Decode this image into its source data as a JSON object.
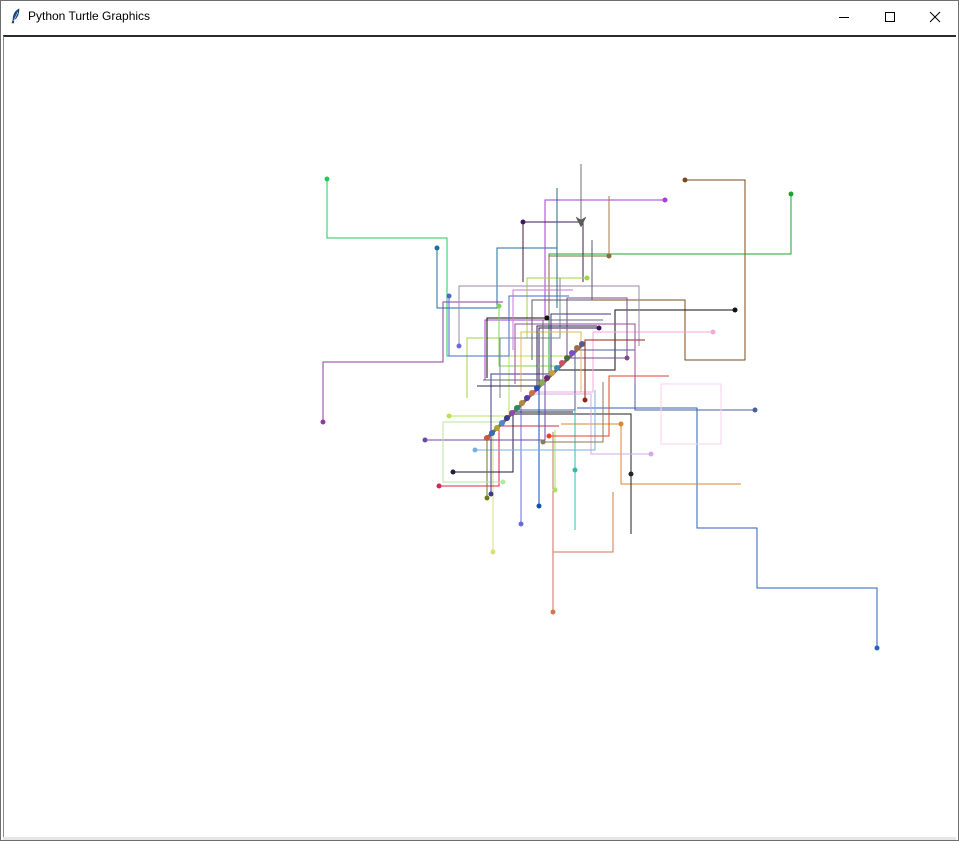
{
  "window": {
    "title": "Python Turtle Graphics",
    "controls": {
      "minimize": "minimize-icon",
      "maximize": "maximize-icon",
      "close": "close-icon"
    },
    "app_icon": "feather-icon"
  },
  "canvas": {
    "background": "#ffffff",
    "turtle_icon": "turtle-cursor-icon",
    "turtle_color": "#5a5a5a"
  }
}
